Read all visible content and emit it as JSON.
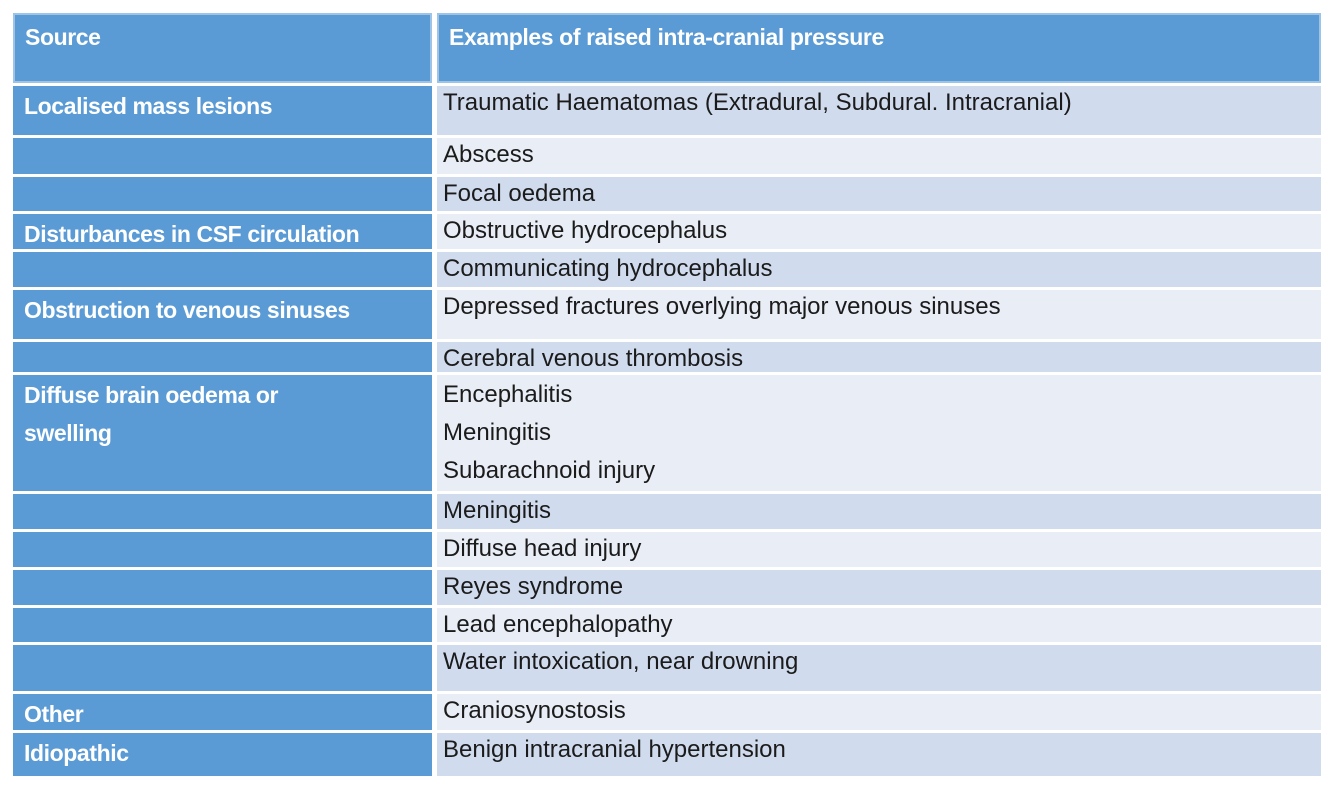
{
  "table": {
    "headers": [
      "Source",
      "Examples of raised intra-cranial pressure"
    ],
    "rows": [
      {
        "source": "Localised mass lesions",
        "example": "Traumatic Haematomas (Extradural, Subdural. Intracranial)"
      },
      {
        "source": "",
        "example": "Abscess"
      },
      {
        "source": "",
        "example": "Focal oedema"
      },
      {
        "source": "Disturbances in CSF circulation",
        "example": "Obstructive hydrocephalus"
      },
      {
        "source": "",
        "example": "Communicating hydrocephalus"
      },
      {
        "source": "Obstruction to venous sinuses",
        "example": "Depressed fractures overlying major venous sinuses"
      },
      {
        "source": "",
        "example": "Cerebral venous thrombosis"
      },
      {
        "source": "Diffuse brain oedema or\nswelling",
        "example": "Encephalitis\nMeningitis\nSubarachnoid injury"
      },
      {
        "source": "",
        "example": "Meningitis"
      },
      {
        "source": "",
        "example": "Diffuse head injury"
      },
      {
        "source": "",
        "example": "Reyes syndrome"
      },
      {
        "source": "",
        "example": "Lead encephalopathy"
      },
      {
        "source": "",
        "example": "Water intoxication, near drowning"
      },
      {
        "source": "Other",
        "example": "Craniosynostosis"
      },
      {
        "source": "Idiopathic",
        "example": "Benign intracranial hypertension"
      }
    ],
    "colors": {
      "header_bg": "#5b9bd5",
      "header_border": "#9dc3e6",
      "source_col_bg": "#5b9bd5",
      "band_dark": "#d0dcee",
      "band_light": "#e9edf6",
      "header_text": "#ffffff",
      "body_text": "#1b1b1b"
    }
  }
}
